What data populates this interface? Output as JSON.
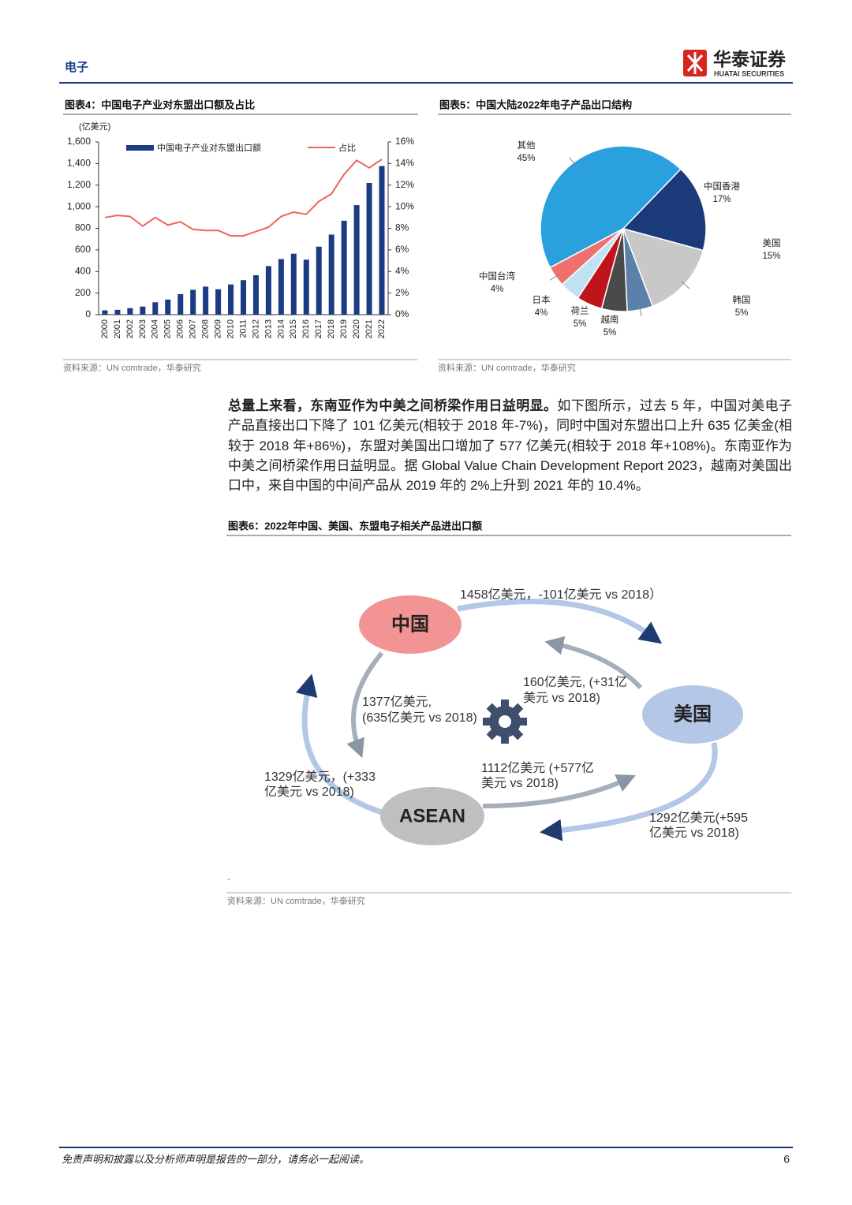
{
  "header": {
    "section": "电子",
    "brand": "华泰证券",
    "brand_en": "HUATAI SECURITIES"
  },
  "chart_data": [
    {
      "type": "bar",
      "title": "图表4：中国电子产业对东盟出口额及占比",
      "y_label": "(亿美元)",
      "categories": [
        "2000",
        "2001",
        "2002",
        "2003",
        "2004",
        "2005",
        "2006",
        "2007",
        "2008",
        "2009",
        "2010",
        "2011",
        "2012",
        "2013",
        "2014",
        "2015",
        "2016",
        "2017",
        "2018",
        "2019",
        "2020",
        "2021",
        "2022"
      ],
      "series": [
        {
          "name": "中国电子产业对东盟出口额",
          "color": "#1b3c83",
          "values": [
            40,
            45,
            60,
            75,
            115,
            140,
            190,
            230,
            260,
            235,
            280,
            320,
            365,
            450,
            515,
            565,
            510,
            630,
            742,
            870,
            1015,
            1220,
            1377
          ]
        },
        {
          "name": "占比",
          "color": "#f0645a",
          "type": "line",
          "axis": "y2",
          "values": [
            9.0,
            9.2,
            9.1,
            8.2,
            9.0,
            8.3,
            8.6,
            7.9,
            7.8,
            7.8,
            7.3,
            7.3,
            7.7,
            8.1,
            9.1,
            9.5,
            9.3,
            10.5,
            11.2,
            13.0,
            14.3,
            13.6,
            14.4
          ]
        }
      ],
      "ylim": [
        0,
        1600
      ],
      "yticks": [
        0,
        200,
        400,
        600,
        800,
        {
          "value": 1000,
          "label": "1,000"
        },
        {
          "value": 1200,
          "label": "1,200"
        },
        {
          "value": 1400,
          "label": "1,400"
        },
        {
          "value": 1600,
          "label": "1,600"
        }
      ],
      "y2lim": [
        0,
        16
      ],
      "y2ticks": [
        {
          "value": 0,
          "label": "0%"
        },
        {
          "value": 2,
          "label": "2%"
        },
        {
          "value": 4,
          "label": "4%"
        },
        {
          "value": 6,
          "label": "6%"
        },
        {
          "value": 8,
          "label": "8%"
        },
        {
          "value": 10,
          "label": "10%"
        },
        {
          "value": 12,
          "label": "12%"
        },
        {
          "value": 14,
          "label": "14%"
        },
        {
          "value": 16,
          "label": "16%"
        }
      ],
      "grid": false,
      "legend": "top",
      "source": "资料来源：UN comtrade，华泰研究"
    },
    {
      "type": "pie",
      "title": "图表5：中国大陆2022年电子产品出口结构",
      "categories": [
        "其他",
        "中国香港",
        "美国",
        "韩国",
        "越南",
        "荷兰",
        "日本",
        "中国台湾"
      ],
      "values": [
        45,
        17,
        15,
        5,
        5,
        5,
        4,
        4
      ],
      "value_labels": [
        "45%",
        "17%",
        "15%",
        "5%",
        "5%",
        "5%",
        "4%",
        "4%"
      ],
      "colors": [
        "#2aa0dc",
        "#1a3a7a",
        "#c8c8c8",
        "#5b80aa",
        "#4a4a4a",
        "#c0141c",
        "#bfe3f5",
        "#f07070"
      ],
      "source": "资料来源：UN comtrade，华泰研究"
    }
  ],
  "body": {
    "lead": "总量上来看，东南亚作为中美之间桥梁作用日益明显。",
    "text": "如下图所示，过去 5 年，中国对美电子产品直接出口下降了 101 亿美元(相较于 2018 年-7%)，同时中国对东盟出口上升 635 亿美金(相较于 2018 年+86%)，东盟对美国出口增加了 577 亿美元(相较于 2018 年+108%)。东南亚作为中美之间桥梁作用日益明显。据 Global Value Chain Development Report 2023，越南对美国出口中，来自中国的中间产品从 2019 年的 2%上升到 2021 年的 10.4%。"
  },
  "diagram": {
    "title": "图表6：2022年中国、美国、东盟电子相关产品进出口额",
    "nodes": [
      {
        "label": "中国"
      },
      {
        "label": "美国"
      },
      {
        "label": "ASEAN"
      }
    ],
    "edges": [
      {
        "lines": [
          "1458亿美元，-101亿美元 vs 2018）"
        ]
      },
      {
        "lines": [
          "160亿美元, (+31亿",
          "美元 vs 2018)"
        ]
      },
      {
        "lines": [
          "1377亿美元,",
          "(635亿美元 vs 2018)"
        ]
      },
      {
        "lines": [
          "1329亿美元，(+333",
          "亿美元 vs 2018)"
        ]
      },
      {
        "lines": [
          "1112亿美元 (+577亿",
          "美元 vs 2018)"
        ]
      },
      {
        "lines": [
          "1292亿美元(+595",
          "亿美元 vs 2018)"
        ]
      }
    ],
    "note": "-",
    "source": "资料来源：UN comtrade，华泰研究"
  },
  "footer": {
    "disclaimer": "免责声明和披露以及分析师声明是报告的一部分，请务必一起阅读。",
    "page": "6"
  }
}
